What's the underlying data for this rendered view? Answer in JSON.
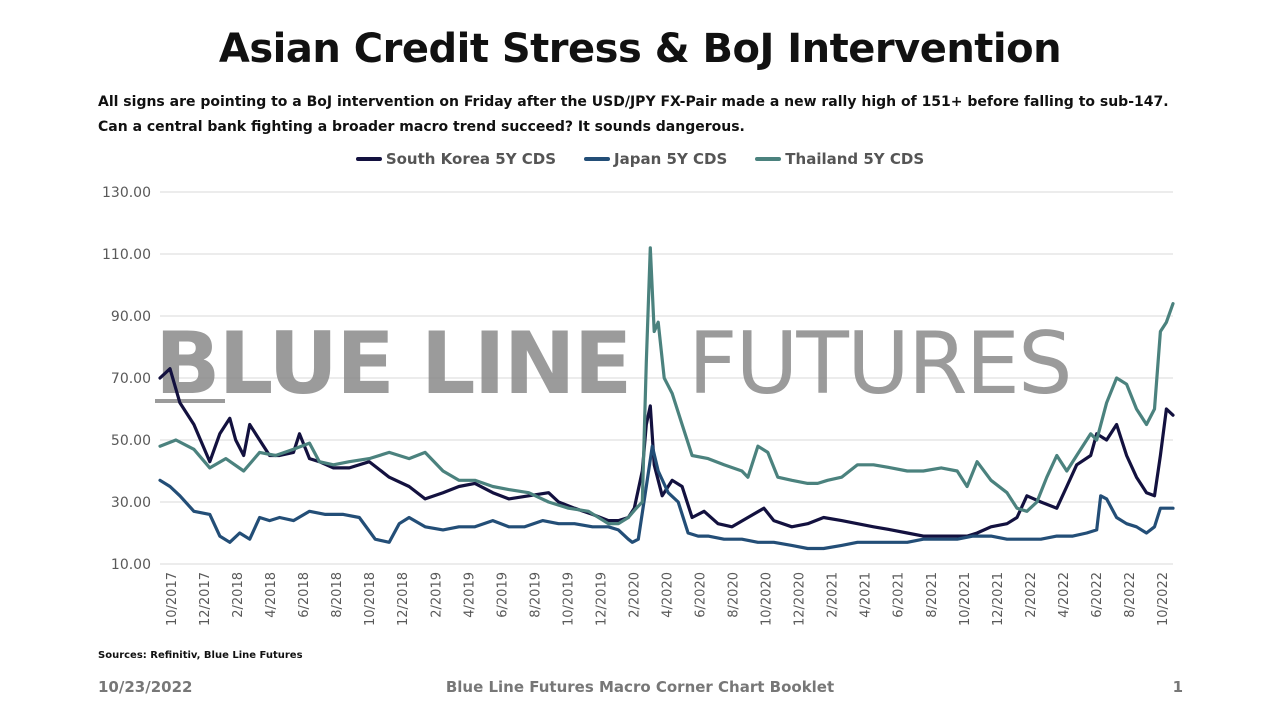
{
  "title": "Asian Credit Stress & BoJ Intervention",
  "subtitle": "All signs are pointing to a BoJ intervention on Friday after the USD/JPY FX-Pair made a new rally high of 151+ before falling to sub-147. Can a central bank fighting a broader macro trend succeed? It sounds dangerous.",
  "watermark": {
    "bold": "BLUE LINE",
    "light": "FUTURES"
  },
  "sources": "Sources: Refinitiv, Blue Line Futures",
  "footer": {
    "date": "10/23/2022",
    "center": "Blue Line Futures Macro Corner Chart Booklet",
    "page": "1"
  },
  "colors": {
    "south_korea": "#13113f",
    "japan": "#234e77",
    "thailand": "#4b827e",
    "grid": "#d9d9d9",
    "axis_text": "#595959"
  },
  "chart_data": {
    "type": "line",
    "ylim": [
      10,
      130
    ],
    "yticks": [
      "10.00",
      "30.00",
      "50.00",
      "70.00",
      "90.00",
      "110.00",
      "130.00"
    ],
    "xlim": [
      2017.75,
      2022.833
    ],
    "xticks": [
      "10/2017",
      "12/2017",
      "2/2018",
      "4/2018",
      "6/2018",
      "8/2018",
      "10/2018",
      "12/2018",
      "2/2019",
      "4/2019",
      "6/2019",
      "8/2019",
      "10/2019",
      "12/2019",
      "2/2020",
      "4/2020",
      "6/2020",
      "8/2020",
      "10/2020",
      "12/2020",
      "2/2021",
      "4/2021",
      "6/2021",
      "8/2021",
      "10/2021",
      "12/2021",
      "2/2022",
      "4/2022",
      "6/2022",
      "8/2022",
      "10/2022"
    ],
    "legend_position": "top",
    "grid": true,
    "series": [
      {
        "name": "South Korea 5Y CDS",
        "color": "#13113f",
        "x": [
          2017.75,
          2017.8,
          2017.85,
          2017.92,
          2018.0,
          2018.05,
          2018.1,
          2018.13,
          2018.17,
          2018.2,
          2018.25,
          2018.3,
          2018.35,
          2018.42,
          2018.45,
          2018.5,
          2018.55,
          2018.62,
          2018.7,
          2018.8,
          2018.9,
          2019.0,
          2019.08,
          2019.17,
          2019.25,
          2019.33,
          2019.42,
          2019.5,
          2019.6,
          2019.7,
          2019.75,
          2019.83,
          2019.92,
          2020.0,
          2020.05,
          2020.1,
          2020.13,
          2020.17,
          2020.19,
          2020.21,
          2020.23,
          2020.27,
          2020.32,
          2020.37,
          2020.42,
          2020.48,
          2020.55,
          2020.62,
          2020.7,
          2020.78,
          2020.83,
          2020.92,
          2021.0,
          2021.08,
          2021.17,
          2021.25,
          2021.33,
          2021.42,
          2021.5,
          2021.58,
          2021.67,
          2021.75,
          2021.8,
          2021.85,
          2021.92,
          2022.0,
          2022.05,
          2022.1,
          2022.17,
          2022.25,
          2022.3,
          2022.35,
          2022.42,
          2022.45,
          2022.5,
          2022.55,
          2022.6,
          2022.65,
          2022.7,
          2022.74,
          2022.77,
          2022.8,
          2022.833
        ],
        "values": [
          70,
          73,
          62,
          55,
          43,
          52,
          57,
          50,
          45,
          55,
          50,
          45,
          45,
          46,
          52,
          44,
          43,
          41,
          41,
          43,
          38,
          35,
          31,
          33,
          35,
          36,
          33,
          31,
          32,
          33,
          30,
          28,
          26,
          24,
          24,
          25,
          28,
          40,
          55,
          61,
          42,
          32,
          37,
          35,
          25,
          27,
          23,
          22,
          25,
          28,
          24,
          22,
          23,
          25,
          24,
          23,
          22,
          21,
          20,
          19,
          19,
          19,
          19,
          20,
          22,
          23,
          25,
          32,
          30,
          28,
          35,
          42,
          45,
          52,
          50,
          55,
          45,
          38,
          33,
          32,
          45,
          60,
          58
        ]
      },
      {
        "name": "Japan 5Y CDS",
        "color": "#234e77",
        "x": [
          2017.75,
          2017.8,
          2017.85,
          2017.92,
          2018.0,
          2018.05,
          2018.1,
          2018.15,
          2018.2,
          2018.25,
          2018.3,
          2018.35,
          2018.42,
          2018.5,
          2018.58,
          2018.67,
          2018.75,
          2018.83,
          2018.9,
          2018.95,
          2019.0,
          2019.08,
          2019.17,
          2019.25,
          2019.33,
          2019.42,
          2019.5,
          2019.58,
          2019.67,
          2019.75,
          2019.83,
          2019.92,
          2020.0,
          2020.05,
          2020.1,
          2020.12,
          2020.15,
          2020.19,
          2020.22,
          2020.25,
          2020.3,
          2020.35,
          2020.4,
          2020.45,
          2020.5,
          2020.58,
          2020.67,
          2020.75,
          2020.83,
          2020.92,
          2021.0,
          2021.08,
          2021.17,
          2021.25,
          2021.33,
          2021.42,
          2021.5,
          2021.58,
          2021.67,
          2021.75,
          2021.83,
          2021.92,
          2022.0,
          2022.08,
          2022.17,
          2022.25,
          2022.33,
          2022.4,
          2022.45,
          2022.47,
          2022.5,
          2022.55,
          2022.6,
          2022.65,
          2022.7,
          2022.74,
          2022.77,
          2022.8,
          2022.833
        ],
        "values": [
          37,
          35,
          32,
          27,
          26,
          19,
          17,
          20,
          18,
          25,
          24,
          25,
          24,
          27,
          26,
          26,
          25,
          18,
          17,
          23,
          25,
          22,
          21,
          22,
          22,
          24,
          22,
          22,
          24,
          23,
          23,
          22,
          22,
          21,
          18,
          17,
          18,
          35,
          48,
          40,
          33,
          30,
          20,
          19,
          19,
          18,
          18,
          17,
          17,
          16,
          15,
          15,
          16,
          17,
          17,
          17,
          17,
          18,
          18,
          18,
          19,
          19,
          18,
          18,
          18,
          19,
          19,
          20,
          21,
          32,
          31,
          25,
          23,
          22,
          20,
          22,
          28,
          28,
          28
        ]
      },
      {
        "name": "Thailand 5Y CDS",
        "color": "#4b827e",
        "x": [
          2017.75,
          2017.83,
          2017.92,
          2018.0,
          2018.08,
          2018.17,
          2018.25,
          2018.33,
          2018.42,
          2018.5,
          2018.55,
          2018.62,
          2018.7,
          2018.8,
          2018.9,
          2019.0,
          2019.08,
          2019.17,
          2019.25,
          2019.33,
          2019.42,
          2019.5,
          2019.6,
          2019.7,
          2019.8,
          2019.9,
          2020.0,
          2020.05,
          2020.1,
          2020.14,
          2020.17,
          2020.19,
          2020.21,
          2020.23,
          2020.25,
          2020.28,
          2020.32,
          2020.37,
          2020.42,
          2020.5,
          2020.58,
          2020.67,
          2020.7,
          2020.75,
          2020.8,
          2020.85,
          2020.92,
          2021.0,
          2021.05,
          2021.1,
          2021.17,
          2021.25,
          2021.33,
          2021.42,
          2021.5,
          2021.58,
          2021.67,
          2021.75,
          2021.8,
          2021.85,
          2021.92,
          2022.0,
          2022.05,
          2022.1,
          2022.15,
          2022.2,
          2022.25,
          2022.3,
          2022.35,
          2022.42,
          2022.45,
          2022.5,
          2022.55,
          2022.6,
          2022.65,
          2022.7,
          2022.74,
          2022.77,
          2022.8,
          2022.833
        ],
        "values": [
          48,
          50,
          47,
          41,
          44,
          40,
          46,
          45,
          47,
          49,
          43,
          42,
          43,
          44,
          46,
          44,
          46,
          40,
          37,
          37,
          35,
          34,
          33,
          30,
          28,
          27,
          23,
          23,
          25,
          28,
          30,
          75,
          112,
          85,
          88,
          70,
          65,
          55,
          45,
          44,
          42,
          40,
          38,
          48,
          46,
          38,
          37,
          36,
          36,
          37,
          38,
          42,
          42,
          41,
          40,
          40,
          41,
          40,
          35,
          43,
          37,
          33,
          28,
          27,
          30,
          38,
          45,
          40,
          45,
          52,
          50,
          62,
          70,
          68,
          60,
          55,
          60,
          85,
          88,
          94
        ]
      }
    ]
  }
}
